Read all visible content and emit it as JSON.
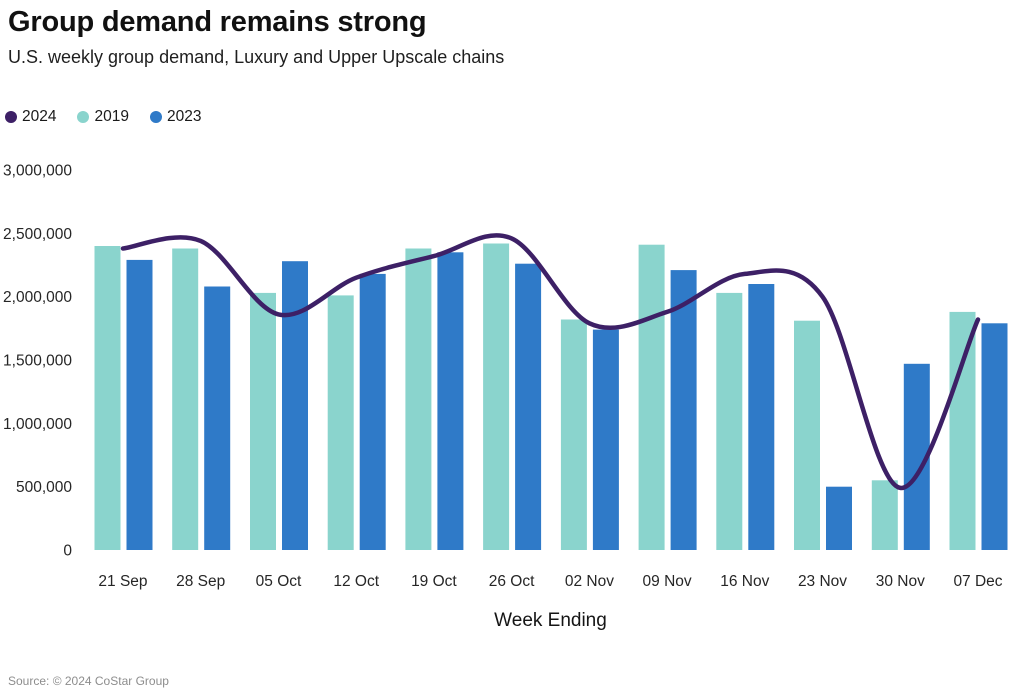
{
  "header": {
    "title": "Group demand remains strong",
    "subtitle": "U.S. weekly group demand, Luxury and Upper Upscale chains"
  },
  "legend": {
    "items": [
      {
        "label": "2024",
        "color": "#3d2066"
      },
      {
        "label": "2019",
        "color": "#8ad4cd"
      },
      {
        "label": "2023",
        "color": "#2f7ac8"
      }
    ]
  },
  "chart_data": {
    "type": "bar+line",
    "title": "Group demand remains strong",
    "subtitle": "U.S. weekly group demand, Luxury and Upper Upscale chains",
    "xlabel": "Week Ending",
    "ylabel": "",
    "ylim": [
      0,
      3000000
    ],
    "yticks": [
      0,
      500000,
      1000000,
      1500000,
      2000000,
      2500000,
      3000000
    ],
    "grid": false,
    "legend_position": "top-left",
    "categories": [
      "21 Sep",
      "28 Sep",
      "05 Oct",
      "12 Oct",
      "19 Oct",
      "26 Oct",
      "02 Nov",
      "09 Nov",
      "16 Nov",
      "23 Nov",
      "30 Nov",
      "07 Dec"
    ],
    "series": [
      {
        "name": "2019",
        "type": "bar",
        "color": "#8ad4cd",
        "values": [
          2400000,
          2380000,
          2030000,
          2010000,
          2380000,
          2420000,
          1820000,
          2410000,
          2030000,
          1810000,
          550000,
          1880000
        ]
      },
      {
        "name": "2023",
        "type": "bar",
        "color": "#2f7ac8",
        "values": [
          2290000,
          2080000,
          2280000,
          2180000,
          2350000,
          2260000,
          1740000,
          2210000,
          2100000,
          500000,
          1470000,
          1790000
        ]
      },
      {
        "name": "2024",
        "type": "line",
        "color": "#3d2066",
        "values": [
          2380000,
          2440000,
          1860000,
          2150000,
          2320000,
          2460000,
          1790000,
          1880000,
          2180000,
          2000000,
          490000,
          1820000
        ]
      }
    ]
  },
  "footer": {
    "source": "Source: © 2024 CoStar Group"
  }
}
